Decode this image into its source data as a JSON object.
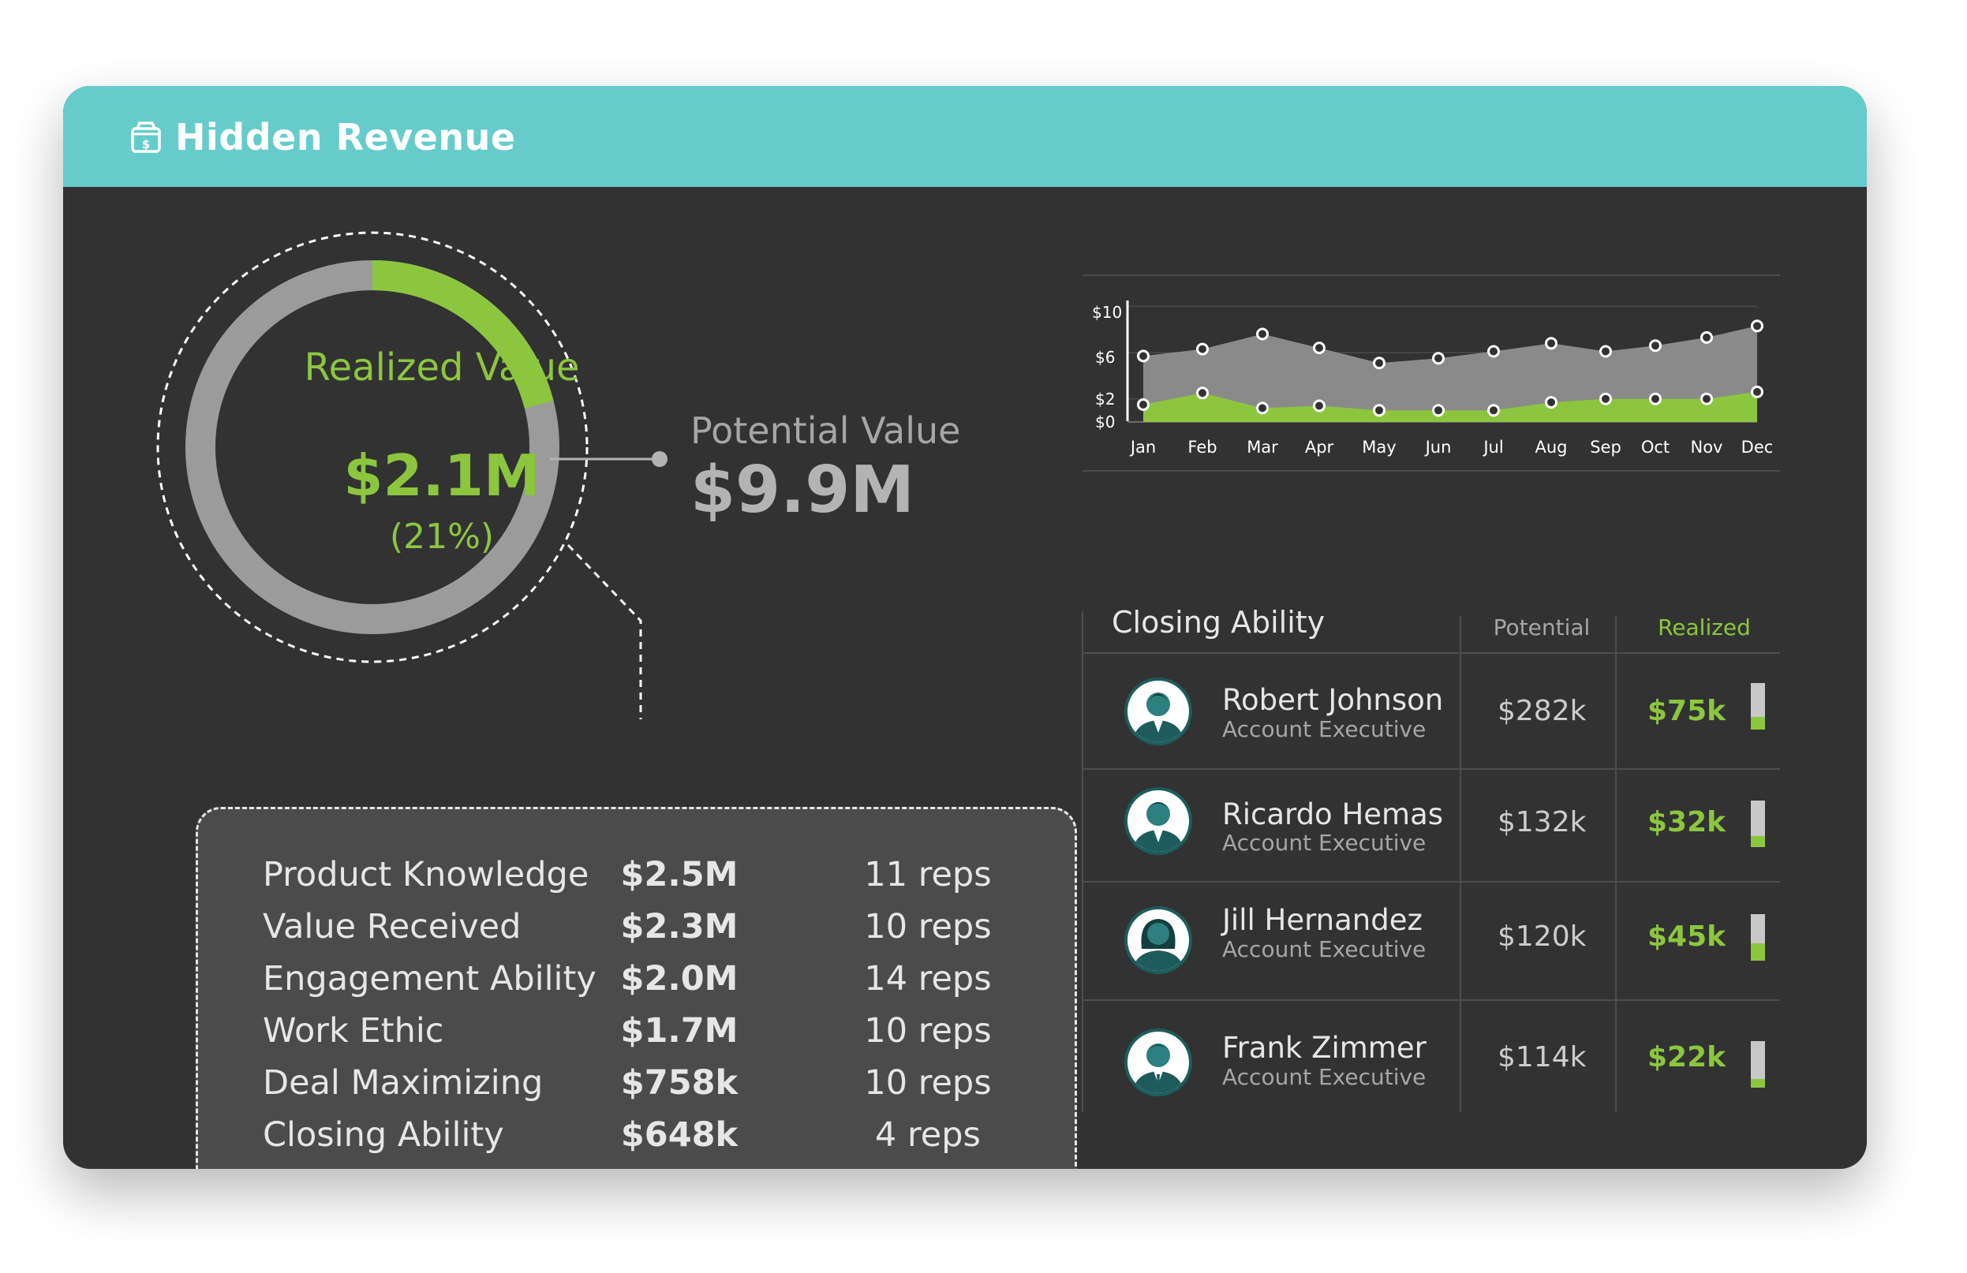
{
  "header": {
    "title": "Hidden Revenue",
    "icon": "revenue-box-icon"
  },
  "colors": {
    "accent": "#8cc63f",
    "header": "#66cccb",
    "panel": "#323232",
    "ring": "#9b9b9b",
    "teal": "#1e5c5c"
  },
  "realized": {
    "label": "Realized Value",
    "value": "$2.1M",
    "percent_text": "(21%)",
    "fraction": 0.21
  },
  "potential": {
    "label": "Potential Value",
    "value": "$9.9M"
  },
  "breakdown": [
    {
      "name": "Product Knowledge",
      "value": "$2.5M",
      "reps": "11 reps"
    },
    {
      "name": "Value Received",
      "value": "$2.3M",
      "reps": "10 reps"
    },
    {
      "name": "Engagement Ability",
      "value": "$2.0M",
      "reps": "14 reps"
    },
    {
      "name": "Work Ethic",
      "value": "$1.7M",
      "reps": "10 reps"
    },
    {
      "name": "Deal Maximizing",
      "value": "$758k",
      "reps": "10 reps"
    },
    {
      "name": "Closing Ability",
      "value": "$648k",
      "reps": "4 reps"
    }
  ],
  "chart_data": {
    "type": "area",
    "categories": [
      "Jan",
      "Feb",
      "Mar",
      "Apr",
      "May",
      "Jun",
      "Jul",
      "Aug",
      "Sep",
      "Oct",
      "Nov",
      "Dec"
    ],
    "y_ticks": [
      "$10",
      "$6",
      "$2",
      "$0"
    ],
    "y_tick_values": [
      10,
      6,
      2,
      0
    ],
    "ylim": [
      0,
      10.5
    ],
    "series": [
      {
        "values": [
          5.7,
          6.3,
          7.6,
          6.4,
          5.1,
          5.5,
          6.1,
          6.8,
          6.1,
          6.6,
          7.3,
          8.3
        ],
        "color": "#8a8a8a"
      },
      {
        "values": [
          1.5,
          2.5,
          1.2,
          1.4,
          1.0,
          1.0,
          1.0,
          1.7,
          2.0,
          2.0,
          2.0,
          2.6
        ],
        "color": "#8cc63f"
      }
    ],
    "xlabel": "",
    "ylabel": "",
    "grid": true
  },
  "closing": {
    "title": "Closing Ability",
    "col_potential": "Potential",
    "col_realized": "Realized",
    "reps": [
      {
        "name": "Robert Johnson",
        "role": "Account Executive",
        "potential": "$282k",
        "realized": "$75k",
        "ratio": 0.27
      },
      {
        "name": "Ricardo Hemas",
        "role": "Account Executive",
        "potential": "$132k",
        "realized": "$32k",
        "ratio": 0.24
      },
      {
        "name": "Jill Hernandez",
        "role": "Account Executive",
        "potential": "$120k",
        "realized": "$45k",
        "ratio": 0.38
      },
      {
        "name": "Frank Zimmer",
        "role": "Account Executive",
        "potential": "$114k",
        "realized": "$22k",
        "ratio": 0.19
      }
    ]
  }
}
